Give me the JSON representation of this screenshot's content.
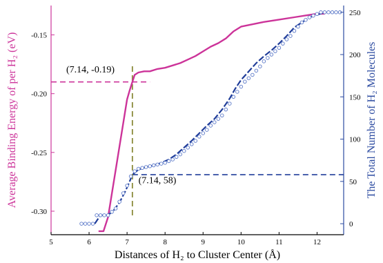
{
  "chart_data": {
    "type": "line",
    "title": "",
    "xlabel": "Distances of H₂ to Cluster Center (Å)",
    "ylabel_left": "Average Binding Energy of per H₂ (eV)",
    "ylabel_right": "The Total Number of H₂ Molecules",
    "xlim": [
      5,
      12.7
    ],
    "ylim_left": [
      -0.32,
      -0.125
    ],
    "ylim_right": [
      -13,
      258
    ],
    "x_ticks": [
      5,
      6,
      7,
      8,
      9,
      10,
      11,
      12
    ],
    "y_ticks_left": [
      -0.3,
      -0.25,
      -0.2,
      -0.15
    ],
    "y_ticks_right": [
      0,
      50,
      100,
      150,
      200,
      250
    ],
    "grid": false,
    "colors": {
      "energy": "#cc3399",
      "count": "#1f3c99",
      "marker_line": "#8a8a3a",
      "axis_left": "#cc3399",
      "axis_right": "#2b4aa0"
    },
    "series": [
      {
        "axis": "left",
        "style": "solid",
        "x": [
          6.25,
          6.38,
          6.5,
          6.6,
          6.7,
          6.8,
          6.9,
          7.0,
          7.07,
          7.14,
          7.2,
          7.3,
          7.45,
          7.6,
          7.8,
          8.0,
          8.2,
          8.4,
          8.6,
          8.8,
          9.0,
          9.2,
          9.4,
          9.6,
          9.8,
          10.0,
          10.3,
          10.6,
          11.0,
          11.4,
          11.8,
          12.0,
          12.2
        ],
        "values": [
          -0.317,
          -0.317,
          -0.305,
          -0.285,
          -0.265,
          -0.245,
          -0.225,
          -0.205,
          -0.197,
          -0.19,
          -0.184,
          -0.182,
          -0.181,
          -0.181,
          -0.179,
          -0.178,
          -0.176,
          -0.174,
          -0.171,
          -0.168,
          -0.164,
          -0.16,
          -0.157,
          -0.153,
          -0.147,
          -0.143,
          -0.141,
          -0.139,
          -0.137,
          -0.135,
          -0.133,
          -0.132,
          -0.132
        ]
      },
      {
        "axis": "right",
        "style": "dashed",
        "x": [
          6.15,
          6.3,
          6.45,
          6.55,
          6.65,
          6.8,
          6.95,
          7.05,
          7.14,
          7.3,
          7.5,
          7.7,
          7.9,
          8.1,
          8.3,
          8.5,
          8.7,
          8.9,
          9.1,
          9.3,
          9.5,
          9.7,
          9.85,
          10.0,
          10.2,
          10.4,
          10.6,
          10.8,
          11.0,
          11.2,
          11.4,
          11.6,
          11.8,
          12.0,
          12.2
        ],
        "values": [
          0,
          10,
          10,
          12,
          16,
          25,
          38,
          48,
          58,
          64,
          67,
          69,
          72,
          76,
          82,
          90,
          98,
          107,
          116,
          124,
          135,
          148,
          160,
          170,
          180,
          190,
          198,
          205,
          213,
          222,
          232,
          238,
          244,
          247,
          250
        ]
      },
      {
        "axis": "right",
        "style": "open-circles",
        "x": [
          5.8,
          5.9,
          6.0,
          6.1,
          6.2,
          6.3,
          6.4,
          6.5,
          6.6,
          6.7,
          6.8,
          6.9,
          7.0,
          7.1,
          7.2,
          7.3,
          7.4,
          7.5,
          7.6,
          7.7,
          7.8,
          7.9,
          8.0,
          8.1,
          8.2,
          8.3,
          8.4,
          8.5,
          8.6,
          8.7,
          8.8,
          8.9,
          9.0,
          9.1,
          9.2,
          9.3,
          9.4,
          9.5,
          9.6,
          9.7,
          9.8,
          9.9,
          10.0,
          10.1,
          10.2,
          10.3,
          10.4,
          10.5,
          10.6,
          10.7,
          10.8,
          10.9,
          11.0,
          11.1,
          11.2,
          11.3,
          11.4,
          11.5,
          11.6,
          11.7,
          11.8,
          11.9,
          12.0,
          12.1,
          12.2,
          12.3,
          12.4,
          12.5,
          12.6
        ],
        "values": [
          0,
          0,
          0,
          0,
          10,
          10,
          10,
          10,
          14,
          18,
          26,
          36,
          45,
          56,
          62,
          65,
          66,
          67,
          68,
          69,
          70,
          71,
          72,
          74,
          76,
          79,
          82,
          86,
          90,
          94,
          98,
          103,
          107,
          111,
          116,
          120,
          124,
          128,
          135,
          142,
          150,
          156,
          162,
          168,
          172,
          176,
          181,
          186,
          192,
          196,
          200,
          204,
          208,
          213,
          218,
          222,
          228,
          233,
          238,
          241,
          244,
          246,
          248,
          250,
          250,
          250,
          250,
          250,
          250
        ]
      }
    ],
    "reference_lines": [
      {
        "axis": "left",
        "orientation": "horizontal",
        "y": -0.19,
        "x_range": [
          5,
          7.6
        ]
      },
      {
        "axis": "right",
        "orientation": "horizontal",
        "y": 58,
        "x_range": [
          7.14,
          12.7
        ]
      },
      {
        "orientation": "vertical",
        "x": 7.14
      }
    ],
    "annotations": [
      {
        "text": "(7.14, -0.19)",
        "x": 5.4,
        "y": -0.182,
        "axis": "left"
      },
      {
        "text": "(7.14, 58)",
        "x": 7.3,
        "y": 48,
        "axis": "right"
      }
    ]
  }
}
